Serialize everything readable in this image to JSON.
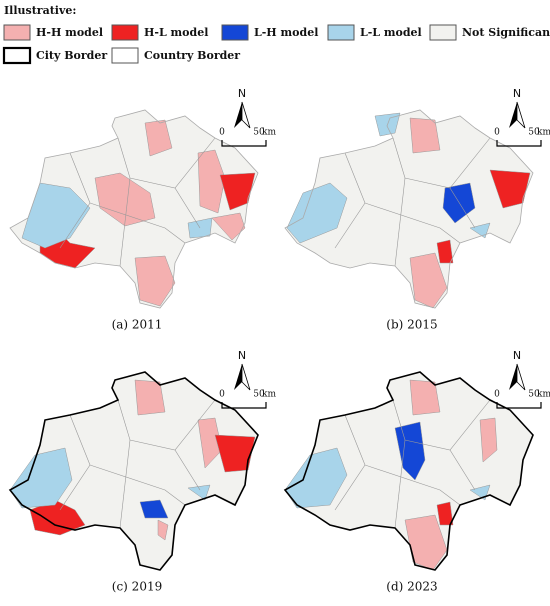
{
  "legend": {
    "title": "Illustrative:",
    "items": [
      "H-H model",
      "H-L model",
      "L-H model",
      "L-L model",
      "Not Significant",
      "City Border",
      "Country Border"
    ]
  },
  "panels": [
    {
      "caption": "(a) 2011",
      "north": "N",
      "scale_start": "0",
      "scale_end": "50",
      "scale_unit": "km"
    },
    {
      "caption": "(b) 2015",
      "north": "N",
      "scale_start": "0",
      "scale_end": "50",
      "scale_unit": "km"
    },
    {
      "caption": "(c) 2019",
      "north": "N",
      "scale_start": "0",
      "scale_end": "50",
      "scale_unit": "km"
    },
    {
      "caption": "(d) 2023",
      "north": "N",
      "scale_start": "0",
      "scale_end": "50",
      "scale_unit": "km"
    }
  ]
}
